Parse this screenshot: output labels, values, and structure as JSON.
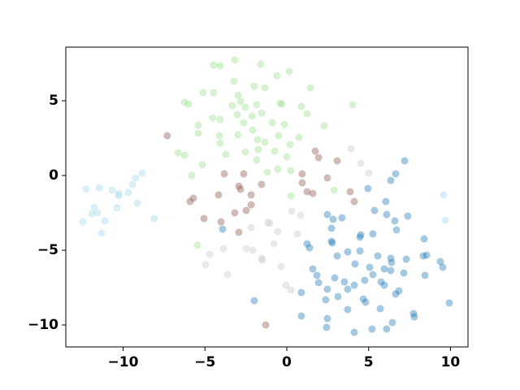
{
  "chart_data": {
    "type": "scatter",
    "xlim": [
      -13.5,
      11.07
    ],
    "ylim": [
      -11.47,
      8.59
    ],
    "xticks": [
      {
        "value": -10,
        "label": "−10"
      },
      {
        "value": -5,
        "label": "−5"
      },
      0,
      5,
      10
    ],
    "yticks": [
      {
        "value": -10,
        "label": "−10"
      },
      {
        "value": -5,
        "label": "−5"
      },
      0,
      5
    ],
    "alpha": 0.4,
    "series": [
      {
        "color": "#9edae5",
        "x": [
          -12.26,
          -11.46,
          -10.67,
          -10.27,
          -10.27,
          -9.68,
          -9.43,
          -9.23,
          -8.83,
          -11.76,
          -11.91,
          -11.56,
          -11.12,
          -11.32,
          -12.46,
          -10.37,
          -9.13,
          -8.09,
          9.58,
          9.68
        ],
        "y": [
          -0.92,
          -0.82,
          -0.98,
          -1.2,
          -1.36,
          -1.14,
          -0.6,
          -0.16,
          0.16,
          -2.12,
          -2.55,
          -2.5,
          -3.04,
          -3.86,
          -3.1,
          -2.17,
          -1.85,
          -2.88,
          -1.3,
          -2.99
        ]
      },
      {
        "color": "#98df8a",
        "x": [
          -3.18,
          -4.47,
          -4.07,
          -1.59,
          -0.6,
          0.15,
          -3.23,
          -1.99,
          -1.34,
          1.44,
          -5.11,
          -4.47,
          -2.98,
          -2.83,
          -1.84,
          -0.4,
          -6.25,
          -6.0,
          -3.33,
          -0.3,
          0.89,
          4.02,
          -2.53,
          1.24,
          -5.41,
          -4.52,
          -4.07,
          -3.03,
          -2.13,
          -1.54,
          -0.89,
          -0.15,
          -2.63,
          -5.41,
          -4.12,
          -2.98,
          -2.08,
          2.28,
          -4.07,
          -1.79,
          -1.34,
          -0.5,
          0.74,
          0.2,
          -3.72,
          -2.53,
          -1.74,
          -0.74,
          0,
          -6.65,
          -6.25,
          -5.16,
          -1.84,
          -0.55,
          0.25,
          -5.81,
          -1.19,
          2.88,
          0.25,
          -5.46
        ],
        "y": [
          7.72,
          7.39,
          7.34,
          7.45,
          6.68,
          6.96,
          6.3,
          5.98,
          5.87,
          5.87,
          5.54,
          5.54,
          5.38,
          4.95,
          4.73,
          4.84,
          4.89,
          4.78,
          4.67,
          4.78,
          4.62,
          4.73,
          4.57,
          4.13,
          3.37,
          3.86,
          3.75,
          4.08,
          3.97,
          4.18,
          3.53,
          3.42,
          3.53,
          2.83,
          2.66,
          2.72,
          3.04,
          3.32,
          2.17,
          2.39,
          2.23,
          2.66,
          2.55,
          2.07,
          1.41,
          1.58,
          1.74,
          1.63,
          1.25,
          1.52,
          1.36,
          0.71,
          1.03,
          0.43,
          0.33,
          0,
          0.22,
          -0.98,
          -1.36,
          -4.67
        ]
      },
      {
        "color": "#8c564b",
        "x": [
          -7.3,
          1.74,
          1.94,
          3.08,
          -3.82,
          -2.63,
          -1.54,
          0.94,
          0.94,
          2.48,
          -2.93,
          -2.83,
          -4.17,
          -2.18,
          -5.71,
          -5.91,
          1.24,
          1.59,
          3.87,
          4.12,
          -2.18,
          -3.18,
          -2.48,
          -5.06,
          -4.02,
          -2.93,
          -1.29
        ],
        "y": [
          2.66,
          1.63,
          1.2,
          0.98,
          0.11,
          0.11,
          -0.6,
          0.11,
          -0.49,
          -0.16,
          -0.71,
          -0.92,
          -1.3,
          -1.3,
          -1.52,
          -1.74,
          -1.09,
          -1.2,
          -1.09,
          -1.74,
          -1.96,
          -2.5,
          -2.34,
          -2.88,
          -3.1,
          -3.8,
          -10.0
        ]
      },
      {
        "color": "#c7c7c7",
        "x": [
          3.92,
          4.52,
          5.01,
          0.3,
          0.84,
          -1.14,
          -1.04,
          -2.18,
          -0.55,
          0.65,
          -0.79,
          -2.48,
          -2.08,
          -3.87,
          -4.71,
          -4.96,
          -1.54,
          -1.49,
          -0.35,
          -3.62,
          -0.05,
          0.25
        ],
        "y": [
          1.79,
          0.82,
          0.16,
          -2.39,
          -2.66,
          -3.15,
          -3.2,
          -3.48,
          -3.75,
          -3.91,
          -4.57,
          -4.89,
          -5.0,
          -4.89,
          -5.27,
          -5.98,
          -5.54,
          -5.65,
          -6.09,
          -6.63,
          -7.34,
          -7.66
        ]
      },
      {
        "color": "#1f77b4",
        "x": [
          7.2,
          6.65,
          6.35,
          4.96,
          6.05,
          6.1,
          6.6,
          7.39,
          6.7,
          2.48,
          2.83,
          3.37,
          5.36,
          5.26,
          4.52,
          4.47,
          2.73,
          2.73,
          2.78,
          1.24,
          1.39,
          3.08,
          3.72,
          4.47,
          5.56,
          6.35,
          6.4,
          7.3,
          8.39,
          8.34,
          8.54,
          9.38,
          9.53,
          8.44,
          7.15,
          6.35,
          5.96,
          4.17,
          5.06,
          5.26,
          4.76,
          4.12,
          3.72,
          2.93,
          3.52,
          1.84,
          1.94,
          1.59,
          0.89,
          2.48,
          3.13,
          5.76,
          5.96,
          6.85,
          6.65,
          4.67,
          4.81,
          2.38,
          0.89,
          2.48,
          2.43,
          3.72,
          5.71,
          6.45,
          6.1,
          5.21,
          4.12,
          7.74,
          7.79,
          9.93,
          -1.99,
          -3.92
        ],
        "y": [
          0.98,
          0.11,
          -0.33,
          -0.87,
          -1.74,
          -2.61,
          -3.04,
          -2.72,
          -3.64,
          -2.61,
          -2.93,
          -2.83,
          -2.34,
          -3.91,
          -3.97,
          -4.13,
          -3.53,
          -4.4,
          -4.51,
          -4.57,
          -4.84,
          -5.38,
          -5.11,
          -5.05,
          -5.38,
          -5.54,
          -5.82,
          -5.6,
          -4.24,
          -5.38,
          -5.33,
          -5.76,
          -6.14,
          -6.68,
          -6.52,
          -6.36,
          -6.25,
          -5.92,
          -6.14,
          -6.63,
          -7.01,
          -7.34,
          -7.61,
          -6.85,
          -7.12,
          -6.68,
          -7.17,
          -6.25,
          -7.83,
          -7.61,
          -8.1,
          -7.12,
          -7.34,
          -7.72,
          -7.93,
          -8.26,
          -8.48,
          -8.32,
          -9.4,
          -9.57,
          -10.16,
          -8.97,
          -8.91,
          -9.84,
          -10.27,
          -10.27,
          -10.49,
          -9.24,
          -9.46,
          -8.53,
          -8.37,
          -3.59
        ]
      }
    ]
  }
}
